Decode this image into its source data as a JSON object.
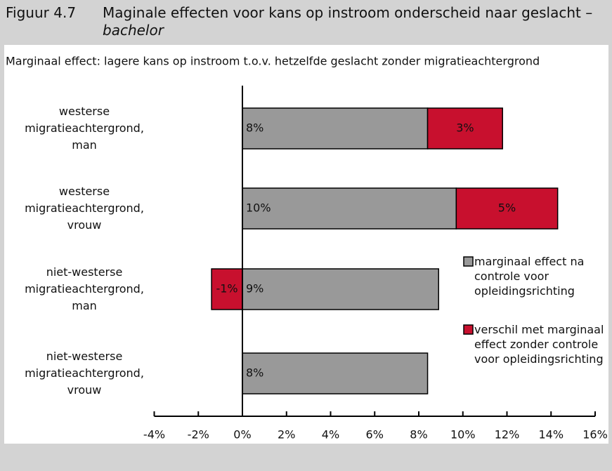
{
  "chart_data": {
    "type": "stacked-bar-horizontal",
    "figure_label": "Figuur 4.7",
    "title": "Maginale effecten voor kans op instroom onderscheid naar geslacht –",
    "title_emphasis": "bachelor",
    "subtitle": "Marginaal effect: lagere kans op instroom t.o.v. hetzelfde geslacht zonder migratieachtergrond",
    "categories": [
      [
        "westerse",
        "migratieachtergrond,",
        "man"
      ],
      [
        "westerse",
        "migratieachtergrond,",
        "vrouw"
      ],
      [
        "niet-westerse",
        "migratieachtergrond,",
        "man"
      ],
      [
        "niet-westerse",
        "migratieachtergrond,",
        "vrouw"
      ]
    ],
    "series": [
      {
        "name": "marginaal effect na controle voor opleidingsrichting",
        "color": "#999999",
        "values": [
          8.4,
          9.7,
          8.9,
          8.4
        ],
        "value_labels": [
          "8%",
          "10%",
          "9%",
          "8%"
        ]
      },
      {
        "name": "verschil met marginaal effect zonder controle voor opleidingsrichting",
        "color": "#c8102e",
        "values": [
          3.4,
          4.6,
          -1.4,
          null
        ],
        "value_labels": [
          "3%",
          "5%",
          "-1%",
          null
        ]
      }
    ],
    "xlim": [
      -4,
      16
    ],
    "xticks": [
      {
        "value": -4,
        "label": "-4%"
      },
      {
        "value": -2,
        "label": "-2%"
      },
      {
        "value": 0,
        "label": "0%"
      },
      {
        "value": 2,
        "label": "2%"
      },
      {
        "value": 4,
        "label": "4%"
      },
      {
        "value": 6,
        "label": "6%"
      },
      {
        "value": 8,
        "label": "8%"
      },
      {
        "value": 10,
        "label": "10%"
      },
      {
        "value": 12,
        "label": "12%"
      },
      {
        "value": 14,
        "label": "14%"
      },
      {
        "value": 16,
        "label": "16%"
      }
    ]
  }
}
